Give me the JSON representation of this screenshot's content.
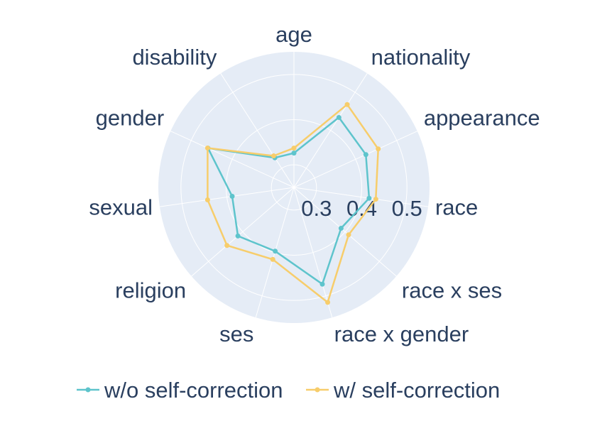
{
  "chart_data": {
    "type": "radar",
    "categories": [
      "age",
      "nationality",
      "appearance",
      "race",
      "race x ses",
      "race x gender",
      "ses",
      "religion",
      "sexual",
      "gender",
      "disability"
    ],
    "radial_range": [
      0.25,
      0.55
    ],
    "radial_ticks": [
      0.3,
      0.4,
      0.5
    ],
    "radial_tick_labels": [
      "0.3",
      "0.4",
      "0.5"
    ],
    "series": [
      {
        "name": "w/o self-correction",
        "color": "#5ec4cc",
        "values": [
          0.326,
          0.434,
          0.425,
          0.418,
          0.388,
          0.473,
          0.397,
          0.414,
          0.388,
          0.459,
          0.328
        ]
      },
      {
        "name": "w/ self-correction",
        "color": "#f7cd6b",
        "values": [
          0.337,
          0.468,
          0.455,
          0.433,
          0.41,
          0.515,
          0.416,
          0.446,
          0.443,
          0.46,
          0.333
        ]
      }
    ],
    "legend": {
      "position": "bottom",
      "orientation": "horizontal"
    },
    "grid": true
  }
}
